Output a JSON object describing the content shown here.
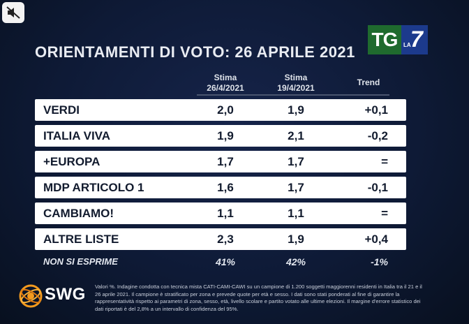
{
  "title": "ORIENTAMENTI DI VOTO: 26 APRILE 2021",
  "broadcaster": {
    "tg": "TG",
    "la": "LA",
    "seven": "7"
  },
  "columns": {
    "stima1_line1": "Stima",
    "stima1_line2": "26/4/2021",
    "stima2_line1": "Stima",
    "stima2_line2": "19/4/2021",
    "trend": "Trend"
  },
  "chart_data": {
    "type": "table",
    "title": "ORIENTAMENTI DI VOTO: 26 APRILE 2021",
    "columns": [
      "Stima 26/4/2021",
      "Stima 19/4/2021",
      "Trend"
    ],
    "rows": [
      {
        "label": "VERDI",
        "stima_26_4_2021": "2,0",
        "stima_19_4_2021": "1,9",
        "trend": "+0,1"
      },
      {
        "label": "ITALIA VIVA",
        "stima_26_4_2021": "1,9",
        "stima_19_4_2021": "2,1",
        "trend": "-0,2"
      },
      {
        "label": "+EUROPA",
        "stima_26_4_2021": "1,7",
        "stima_19_4_2021": "1,7",
        "trend": "="
      },
      {
        "label": "MDP ARTICOLO 1",
        "stima_26_4_2021": "1,6",
        "stima_19_4_2021": "1,7",
        "trend": "-0,1"
      },
      {
        "label": "CAMBIAMO!",
        "stima_26_4_2021": "1,1",
        "stima_19_4_2021": "1,1",
        "trend": "="
      },
      {
        "label": "ALTRE LISTE",
        "stima_26_4_2021": "2,3",
        "stima_19_4_2021": "1,9",
        "trend": "+0,4"
      }
    ],
    "non_si_esprime": {
      "label": "NON SI ESPRIME",
      "stima_26_4_2021": "41%",
      "stima_19_4_2021": "42%",
      "trend": "-1%"
    }
  },
  "pollster": "SWG",
  "footnote": "Valori %. Indagine condotta con tecnica mista CATI-CAMI-CAWI su un campione di 1.200 soggetti maggiorenni residenti in Italia tra il 21 e il 26 aprile 2021. Il campione è stratificato per zona e prevede quote per età e sesso. I dati sono stati ponderati al fine di garantire la rappresentatività rispetto ai parametri di zona, sesso, età, livello scolare e partito votato alle ultime elezioni. Il margine d'errore statistico dei dati riportati è del 2,8% a un intervallo di confidenza del 95%.",
  "icons": {
    "mute": "speaker-muted-icon"
  }
}
